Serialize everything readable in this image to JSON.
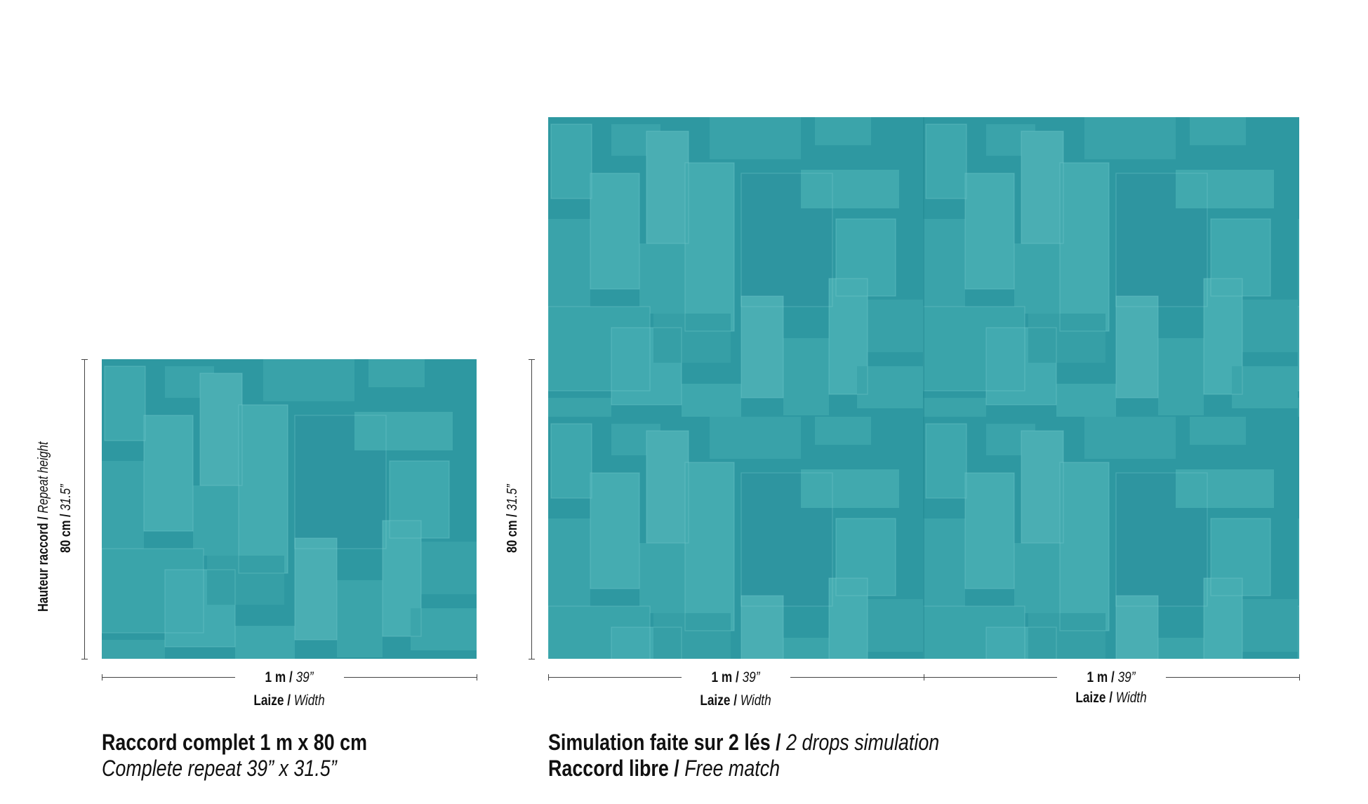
{
  "left": {
    "height_label": {
      "fr_bold": "Hauteur raccord /",
      "en_italic": "Repeat height",
      "metric": "80 cm /",
      "imperial": "31.5”"
    },
    "width_label": {
      "metric": "1 m /",
      "imperial": "39”",
      "fr": "Laize /",
      "en": "Width"
    },
    "caption": {
      "line1": "Raccord complet 1 m x 80 cm",
      "line2": "Complete repeat 39” x 31.5”"
    }
  },
  "right": {
    "height_label": {
      "metric": "80 cm /",
      "imperial": "31.5”"
    },
    "width_label_1": {
      "metric": "1 m /",
      "imperial": "39”",
      "fr": "Laize /",
      "en": "Width"
    },
    "width_label_2": {
      "metric": "1 m /",
      "imperial": "39”",
      "fr": "Laize /",
      "en": "Width"
    },
    "caption": {
      "line1_bold": "Simulation faite sur 2 lés /",
      "line1_italic": "2 drops simulation",
      "line2_bold": "Raccord libre /",
      "line2_italic": "Free match"
    }
  },
  "colors": {
    "base_teal": "#2f9aa3",
    "dark_teal": "#1f8791",
    "light_teal": "#4fb3b8",
    "line": "#444444"
  }
}
